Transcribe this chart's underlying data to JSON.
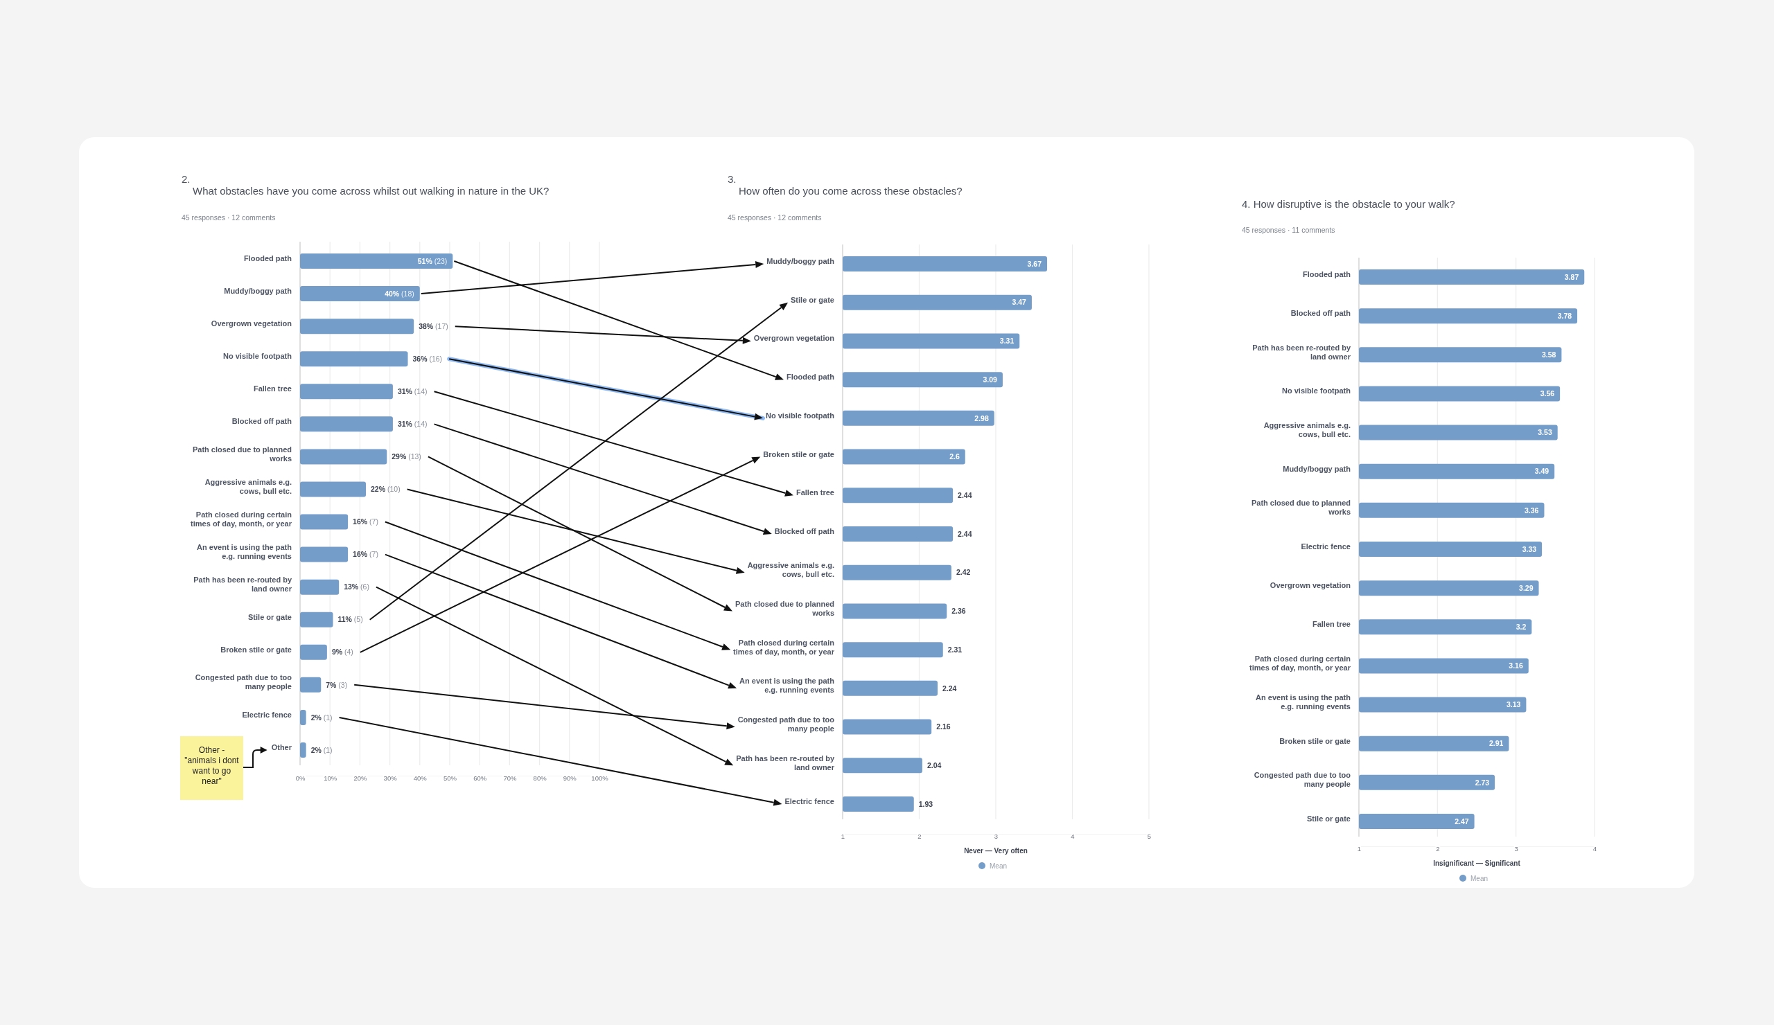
{
  "chart_data": [
    {
      "type": "bar",
      "orientation": "horizontal",
      "title": "2.\nWhat obstacles have you come across whilst out walking in nature in the UK?",
      "subtitle": "45 responses · 12 comments",
      "categories": [
        "Flooded path",
        "Muddy/boggy path",
        "Overgrown vegetation",
        "No visible footpath",
        "Fallen tree",
        "Blocked off path",
        "Path closed due to planned works",
        "Aggressive animals e.g. cows, bull etc.",
        "Path closed during certain times of day, month, or year",
        "An event is using the path e.g. running events",
        "Path has been re-routed by land owner",
        "Stile or gate",
        "Broken stile or gate",
        "Congested path due to too many people",
        "Electric fence",
        "Other"
      ],
      "values": [
        51,
        40,
        38,
        36,
        31,
        31,
        29,
        22,
        16,
        16,
        13,
        11,
        9,
        7,
        2,
        2
      ],
      "value_labels": [
        "51% (23)",
        "40% (18)",
        "38% (17)",
        "36% (16)",
        "31% (14)",
        "31% (14)",
        "29% (13)",
        "22% (10)",
        "16% (7)",
        "16% (7)",
        "13% (6)",
        "11% (5)",
        "9% (4)",
        "7% (3)",
        "2% (1)",
        "2% (1)"
      ],
      "color": "#749dc9",
      "xlim": [
        0,
        100
      ],
      "xticks": [
        {
          "value": 0,
          "label": "0%"
        },
        {
          "value": 10,
          "label": "10%"
        },
        {
          "value": 20,
          "label": "20%"
        },
        {
          "value": 30,
          "label": "30%"
        },
        {
          "value": 40,
          "label": "40%"
        },
        {
          "value": 50,
          "label": "50%"
        },
        {
          "value": 60,
          "label": "60%"
        },
        {
          "value": 70,
          "label": "70%"
        },
        {
          "value": 80,
          "label": "80%"
        },
        {
          "value": 90,
          "label": "90%"
        },
        {
          "value": 100,
          "label": "100%"
        }
      ],
      "grid": "x",
      "annotations": [
        "Other  - \"animals i dont want to go near\""
      ]
    },
    {
      "type": "bar",
      "orientation": "horizontal",
      "title": "3.\nHow often do you come across these obstacles?",
      "subtitle": "45 responses · 12 comments",
      "categories": [
        "Muddy/boggy path",
        "Stile or gate",
        "Overgrown vegetation",
        "Flooded path",
        "No visible footpath",
        "Broken stile or gate",
        "Fallen tree",
        "Blocked off path",
        "Aggressive animals e.g. cows, bull etc.",
        "Path closed due to planned works",
        "Path closed during certain times of day, month, or year",
        "An event is using the path e.g. running events",
        "Congested path due to too many people",
        "Path has been re-routed by land owner",
        "Electric fence"
      ],
      "series": [
        {
          "name": "Mean",
          "color": "#749dc9",
          "values": [
            3.67,
            3.47,
            3.31,
            3.09,
            2.98,
            2.6,
            2.44,
            2.44,
            2.42,
            2.36,
            2.31,
            2.24,
            2.16,
            2.04,
            1.93
          ]
        }
      ],
      "data_labels": true,
      "xlim": [
        1,
        5
      ],
      "xticks": [
        1,
        2,
        3,
        4,
        5
      ],
      "grid": "x",
      "xlabel": "Never — Very often",
      "legend": "bottom"
    },
    {
      "type": "bar",
      "orientation": "horizontal",
      "title": "4. How disruptive is the obstacle to your walk?",
      "subtitle": "45 responses · 11 comments",
      "categories": [
        "Flooded path",
        "Blocked off path",
        "Path has been re-routed by land owner",
        "No visible footpath",
        "Aggressive animals e.g. cows, bull etc.",
        "Muddy/boggy path",
        "Path closed due to planned works",
        "Electric fence",
        "Overgrown vegetation",
        "Fallen tree",
        "Path closed during certain times of day, month, or year",
        "An event is using the path e.g. running events",
        "Broken stile or gate",
        "Congested path due to too many people",
        "Stile or gate"
      ],
      "series": [
        {
          "name": "Mean",
          "color": "#749dc9",
          "values": [
            3.87,
            3.78,
            3.58,
            3.56,
            3.53,
            3.49,
            3.36,
            3.33,
            3.29,
            3.2,
            3.16,
            3.13,
            2.91,
            2.73,
            2.47
          ]
        }
      ],
      "data_labels": true,
      "xlim": [
        1,
        4
      ],
      "xticks": [
        1,
        2,
        3,
        4
      ],
      "grid": "x",
      "xlabel": "Insignificant — Significant",
      "legend": "bottom"
    }
  ]
}
